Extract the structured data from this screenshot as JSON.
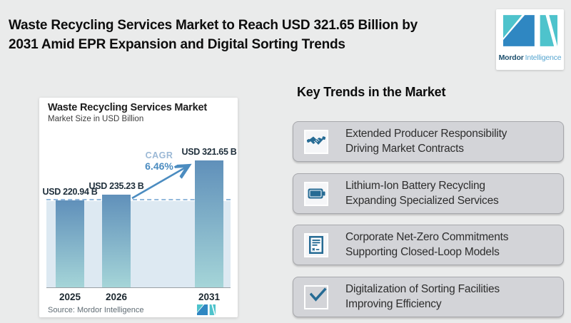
{
  "header": {
    "title_lines": [
      "Waste Recycling Services Market to Reach USD 321.65 Billion by",
      "2031 Amid EPR Expansion and Digital Sorting Trends"
    ],
    "logo": {
      "brand_bold": "Mordor",
      "brand_light": "Intelligence"
    }
  },
  "chart_card": {
    "title": "Waste Recycling Services Market",
    "subtitle": "Market Size in USD Billion",
    "cagr_label": "CAGR",
    "cagr_value": "6.46%",
    "source": "Source: Mordor Intelligence"
  },
  "chart_data": {
    "type": "bar",
    "title": "Waste Recycling Services Market",
    "subtitle": "Market Size in USD Billion",
    "unit": "USD Billion",
    "categories": [
      "2025",
      "2026",
      "2031"
    ],
    "values": [
      220.94,
      235.23,
      321.65
    ],
    "value_labels": [
      "USD 220.94 B",
      "USD 235.23 B",
      "USD 321.65 B"
    ],
    "cagr_percent": 6.46,
    "baseline_dashed_at_value": 220.94,
    "bar_gradient_top": "#6090ba",
    "bar_gradient_bottom": "#a5d5d8",
    "band_color": "#dde9f2",
    "dashed_line_color": "#93b9dc",
    "arrow_color": "#4b8cc0",
    "legend_position": "none",
    "grid": false
  },
  "trends": {
    "heading": "Key Trends in the Market",
    "items": [
      {
        "icon": "handshake-icon",
        "line1": "Extended Producer Responsibility",
        "line2": "Driving Market Contracts"
      },
      {
        "icon": "battery-icon",
        "line1": "Lithium-Ion Battery Recycling",
        "line2": "Expanding Specialized Services"
      },
      {
        "icon": "contract-icon",
        "line1": "Corporate Net-Zero Commitments",
        "line2": "Supporting Closed-Loop Models"
      },
      {
        "icon": "checkmark-icon",
        "line1": "Digitalization of Sorting Facilities",
        "line2": "Improving Efficiency"
      }
    ]
  },
  "colors": {
    "page_background": "#eaebeb",
    "trend_card_background": "#d3d4d8",
    "icon_blue": "#266b94",
    "brand_teal": "#4ec3cc",
    "brand_blue": "#2f87c2",
    "cagr_value_blue": "#4b8cc0",
    "cagr_label_blue": "#9cb9d6"
  }
}
